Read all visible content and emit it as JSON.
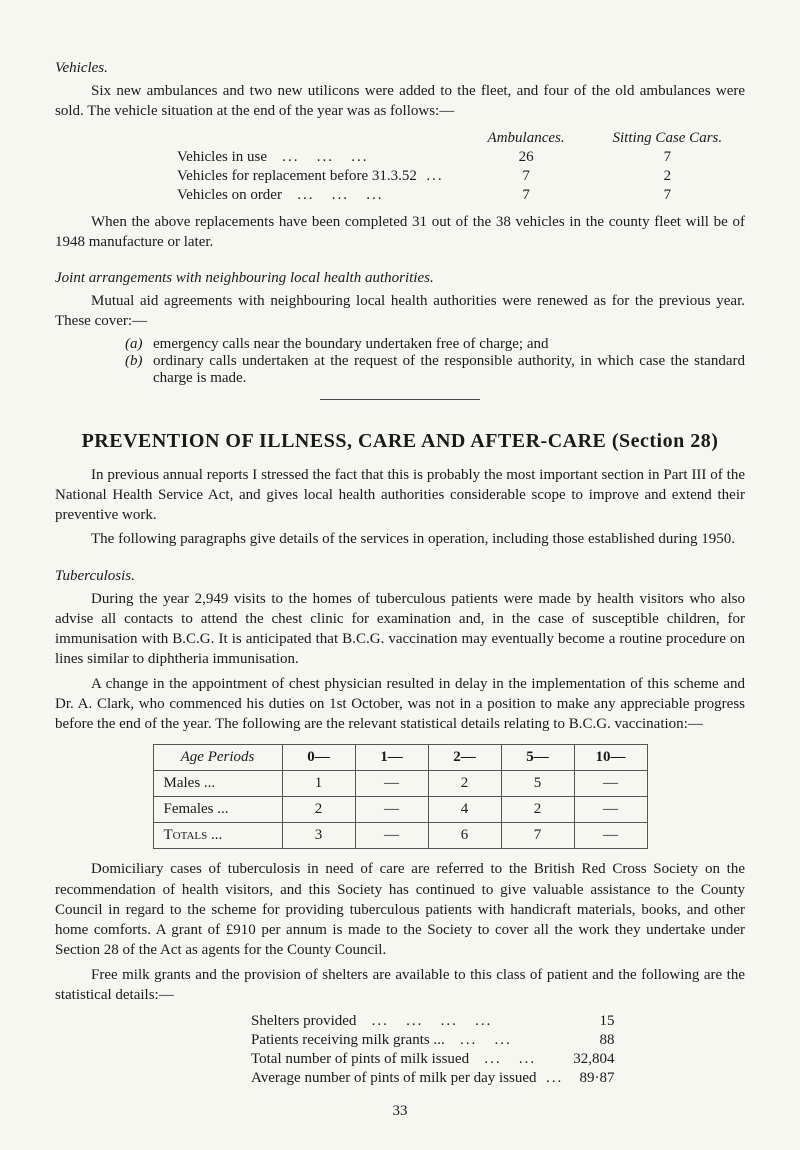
{
  "vehicles_section": {
    "heading": "Vehicles.",
    "intro": "Six new ambulances and two new utilicons were added to the fleet, and four of the old ambulances were sold. The vehicle situation at the end of the year was as follows:—",
    "col_headers": {
      "amb": "Ambulances.",
      "sitting": "Sitting Case Cars."
    },
    "rows": [
      {
        "label": "Vehicles in use",
        "amb": "26",
        "sitting": "7"
      },
      {
        "label": "Vehicles for replacement before 31.3.52",
        "amb": "7",
        "sitting": "2"
      },
      {
        "label": "Vehicles on order",
        "amb": "7",
        "sitting": "7"
      }
    ],
    "after": "When the above replacements have been completed 31 out of the 38 vehicles in the county fleet will be of 1948 manufacture or later."
  },
  "joint_section": {
    "heading": "Joint arrangements with neighbouring local health authorities.",
    "intro": "Mutual aid agreements with neighbouring local health authorities were renewed as for the previous year. These cover:—",
    "items": [
      {
        "lab": "(a)",
        "txt": "emergency calls near the boundary undertaken free of charge; and"
      },
      {
        "lab": "(b)",
        "txt": "ordinary calls undertaken at the request of the responsible authority, in which case the standard charge is made."
      }
    ]
  },
  "main_heading": "PREVENTION OF ILLNESS, CARE AND AFTER-CARE (Section 28)",
  "prevention_intro": [
    "In previous annual reports I stressed the fact that this is probably the most important section in Part III of the National Health Service Act, and gives local health authorities considerable scope to improve and extend their preventive work.",
    "The following paragraphs give details of the services in operation, including those established during 1950."
  ],
  "tb_section": {
    "heading": "Tuberculosis.",
    "paras": [
      "During the year 2,949 visits to the homes of tuberculous patients were made by health visitors who also advise all contacts to attend the chest clinic for examination and, in the case of susceptible children, for immunisation with B.C.G. It is anticipated that B.C.G. vaccination may eventually become a routine procedure on lines similar to diphtheria immunisation.",
      "A change in the appointment of chest physician resulted in delay in the implementation of this scheme and Dr. A. Clark, who commenced his duties on 1st October, was not in a position to make any appreciable progress before the end of the year. The following are the relevant statistical details relating to B.C.G. vaccination:—"
    ],
    "table": {
      "age_label": "Age Periods",
      "cols": [
        "0—",
        "1—",
        "2—",
        "5—",
        "10—"
      ],
      "rows": [
        {
          "label": "Males    ...",
          "vals": [
            "1",
            "—",
            "2",
            "5",
            "—"
          ]
        },
        {
          "label": "Females  ...",
          "vals": [
            "2",
            "—",
            "4",
            "2",
            "—"
          ]
        }
      ],
      "totals": {
        "label": "Totals ...",
        "vals": [
          "3",
          "—",
          "6",
          "7",
          "—"
        ]
      }
    },
    "after_paras": [
      "Domiciliary cases of tuberculosis in need of care are referred to the British Red Cross Society on the recommendation of health visitors, and this Society has continued to give valuable assistance to the County Council in regard to the scheme for providing tuberculous patients with handicraft materials, books, and other home comforts. A grant of £910 per annum is made to the Society to cover all the work they undertake under Section 28 of the Act as agents for the County Council.",
      "Free milk grants and the provision of shelters are available to this class of patient and the following are the statistical details:—"
    ],
    "milk_rows": [
      {
        "label": "Shelters provided",
        "val": "15"
      },
      {
        "label": "Patients receiving milk grants ...",
        "val": "88"
      },
      {
        "label": "Total number of pints of milk issued",
        "val": "32,804"
      },
      {
        "label": "Average number of pints of milk per day issued",
        "val": "89·87"
      }
    ]
  },
  "page_number": "33"
}
